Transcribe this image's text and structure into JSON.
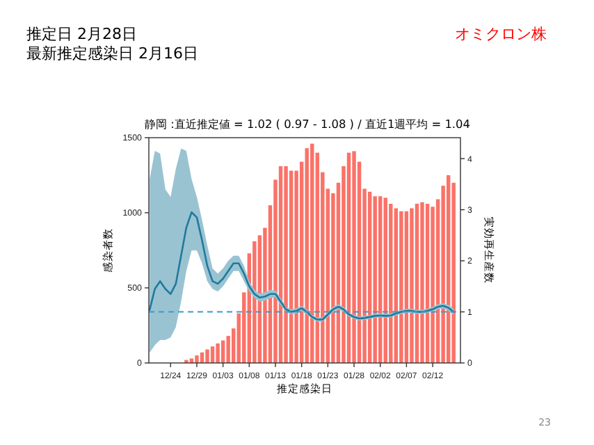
{
  "chart_data": {
    "type": "bar",
    "title": "静岡 :直近推定値 = 1.02 ( 0.97 - 1.08 ) / 直近1週平均 = 1.04",
    "annotations": [
      "推定日  2月28日",
      "最新推定感染日  2月16日",
      "オミクロン株",
      "23"
    ],
    "xlabel": "推定感染日",
    "ylabel": "感染者数",
    "y2label": "実効再生産数",
    "categories": [
      null,
      null,
      null,
      null,
      "12/24",
      null,
      null,
      null,
      null,
      "12/29",
      null,
      null,
      null,
      null,
      "01/03",
      null,
      null,
      null,
      null,
      "01/08",
      null,
      null,
      null,
      null,
      "01/13",
      null,
      null,
      null,
      null,
      "01/18",
      null,
      null,
      null,
      null,
      "01/23",
      null,
      null,
      null,
      null,
      "01/28",
      null,
      null,
      null,
      null,
      "02/02",
      null,
      null,
      null,
      null,
      "02/07",
      null,
      null,
      null,
      null,
      "02/12",
      null,
      null,
      null,
      null
    ],
    "ylim": [
      0,
      1500
    ],
    "yticks": [
      0,
      500,
      1000,
      1500
    ],
    "y2lim": [
      0,
      4.41
    ],
    "y2ticks": [
      0,
      1,
      2,
      3,
      4
    ],
    "ref_lines": [
      {
        "axis": "y2",
        "value": 1,
        "color": "#3a9acb",
        "line_style": "dashed"
      }
    ],
    "series": [
      {
        "color": "#fa7268",
        "values": [
          null,
          null,
          null,
          null,
          null,
          null,
          null,
          20,
          30,
          50,
          70,
          90,
          110,
          130,
          150,
          180,
          230,
          330,
          470,
          730,
          810,
          850,
          900,
          1050,
          1220,
          1310,
          1310,
          1280,
          1280,
          1340,
          1430,
          1460,
          1400,
          1270,
          1160,
          1130,
          1200,
          1310,
          1400,
          1410,
          1340,
          1160,
          1140,
          1110,
          1110,
          1100,
          1060,
          1030,
          1010,
          1010,
          1030,
          1060,
          1070,
          1060,
          1040,
          1090,
          1180,
          1250,
          1200
        ]
      },
      {
        "type": "line",
        "axis": "y2",
        "color": "#1f7a9c",
        "values": [
          1.04,
          1.45,
          1.6,
          1.45,
          1.35,
          1.55,
          2.1,
          2.65,
          2.95,
          2.85,
          2.4,
          1.9,
          1.6,
          1.55,
          1.65,
          1.8,
          1.95,
          1.95,
          1.75,
          1.5,
          1.35,
          1.28,
          1.3,
          1.35,
          1.35,
          1.2,
          1.05,
          1.0,
          1.02,
          1.07,
          1.0,
          0.9,
          0.85,
          0.85,
          0.95,
          1.05,
          1.1,
          1.05,
          0.95,
          0.9,
          0.87,
          0.88,
          0.9,
          0.92,
          0.93,
          0.92,
          0.93,
          0.97,
          1.0,
          1.02,
          1.02,
          1.0,
          1.0,
          1.02,
          1.05,
          1.1,
          1.12,
          1.08,
          1.0
        ],
        "lower": [
          0.2,
          0.35,
          0.45,
          0.45,
          0.5,
          0.7,
          1.2,
          1.8,
          2.2,
          2.2,
          1.95,
          1.6,
          1.45,
          1.4,
          1.5,
          1.65,
          1.8,
          1.8,
          1.6,
          1.4,
          1.27,
          1.2,
          1.22,
          1.27,
          1.28,
          1.13,
          1.0,
          0.95,
          0.97,
          1.02,
          0.95,
          0.86,
          0.81,
          0.81,
          0.9,
          1.0,
          1.05,
          1.0,
          0.91,
          0.86,
          0.83,
          0.84,
          0.86,
          0.88,
          0.89,
          0.88,
          0.89,
          0.93,
          0.96,
          0.98,
          0.98,
          0.96,
          0.96,
          0.98,
          1.0,
          1.05,
          1.07,
          1.02,
          0.94
        ],
        "upper": [
          3.6,
          4.15,
          4.1,
          3.4,
          3.25,
          3.8,
          4.2,
          4.15,
          3.6,
          3.25,
          2.8,
          2.3,
          1.85,
          1.75,
          1.85,
          2.0,
          2.1,
          2.1,
          1.9,
          1.6,
          1.43,
          1.36,
          1.38,
          1.43,
          1.42,
          1.27,
          1.1,
          1.05,
          1.07,
          1.12,
          1.05,
          0.94,
          0.89,
          0.89,
          1.0,
          1.1,
          1.15,
          1.1,
          0.99,
          0.94,
          0.91,
          0.92,
          0.94,
          0.96,
          0.97,
          0.96,
          0.97,
          1.01,
          1.04,
          1.06,
          1.06,
          1.04,
          1.04,
          1.06,
          1.1,
          1.15,
          1.17,
          1.14,
          1.06
        ]
      }
    ]
  }
}
